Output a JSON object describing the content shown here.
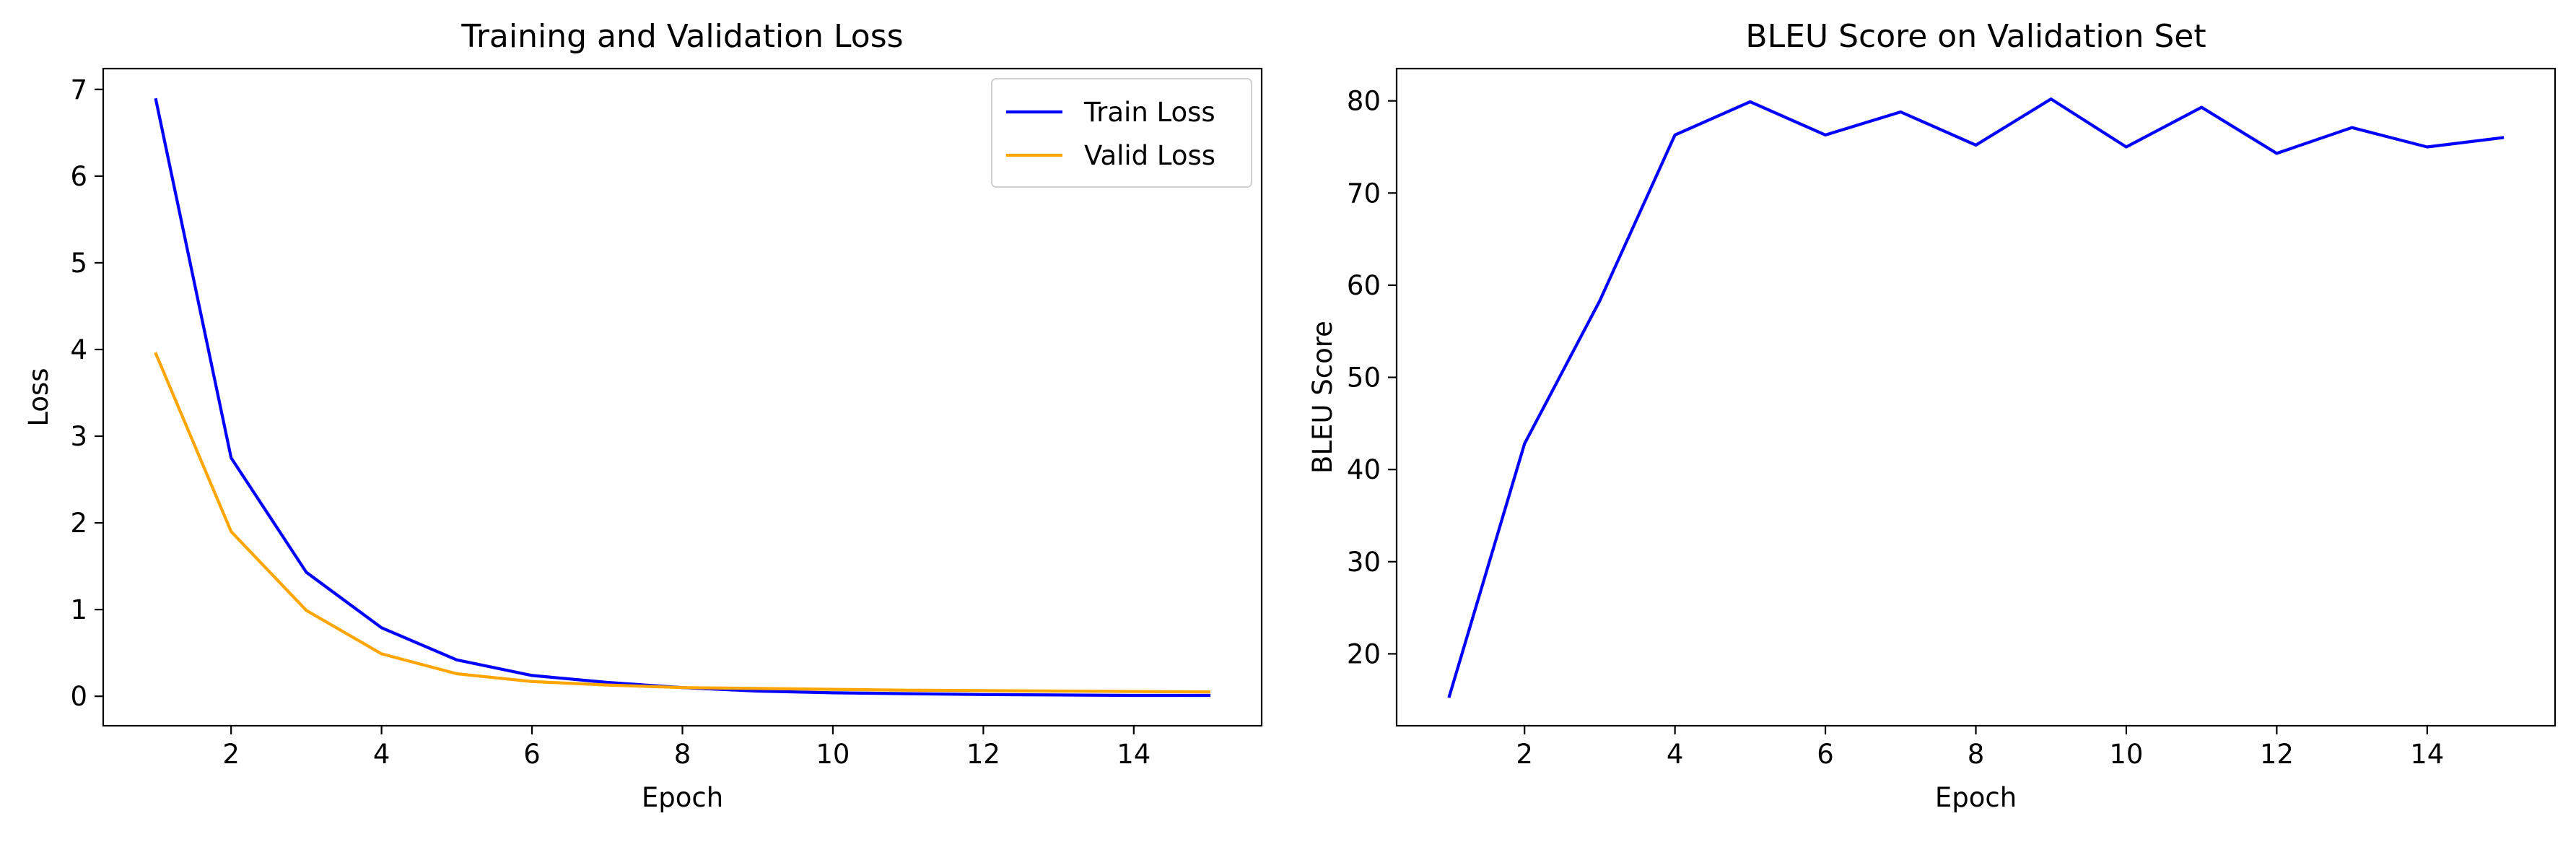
{
  "colors": {
    "train": "#0000ff",
    "valid": "#ffa500",
    "bleu": "#0000ff"
  },
  "chart_data": [
    {
      "type": "line",
      "title": "Training and Validation Loss",
      "xlabel": "Epoch",
      "ylabel": "Loss",
      "xlim": [
        0.3,
        15.7
      ],
      "ylim": [
        -0.34,
        7.24
      ],
      "xticks": [
        2,
        4,
        6,
        8,
        10,
        12,
        14
      ],
      "yticks": [
        0,
        1,
        2,
        3,
        4,
        5,
        6,
        7
      ],
      "x": [
        1,
        2,
        3,
        4,
        5,
        6,
        7,
        8,
        9,
        10,
        11,
        12,
        13,
        14,
        15
      ],
      "legend_position": "upper-right",
      "series": [
        {
          "name": "Train Loss",
          "color": "#0000ff",
          "values": [
            6.88,
            2.75,
            1.43,
            0.79,
            0.42,
            0.24,
            0.16,
            0.1,
            0.06,
            0.04,
            0.03,
            0.02,
            0.015,
            0.01,
            0.01
          ]
        },
        {
          "name": "Valid Loss",
          "color": "#ffa500",
          "values": [
            3.95,
            1.9,
            0.99,
            0.49,
            0.26,
            0.17,
            0.13,
            0.1,
            0.09,
            0.08,
            0.07,
            0.065,
            0.06,
            0.055,
            0.05
          ]
        }
      ]
    },
    {
      "type": "line",
      "title": "BLEU Score on Validation Set",
      "xlabel": "Epoch",
      "ylabel": "BLEU Score",
      "xlim": [
        0.3,
        15.7
      ],
      "ylim": [
        12.2,
        83.5
      ],
      "xticks": [
        2,
        4,
        6,
        8,
        10,
        12,
        14
      ],
      "yticks": [
        20,
        30,
        40,
        50,
        60,
        70,
        80
      ],
      "x": [
        1,
        2,
        3,
        4,
        5,
        6,
        7,
        8,
        9,
        10,
        11,
        12,
        13,
        14,
        15
      ],
      "series": [
        {
          "color": "#0000ff",
          "values": [
            15.4,
            42.8,
            58.3,
            76.3,
            79.9,
            76.3,
            78.8,
            75.2,
            80.2,
            75.0,
            79.3,
            74.3,
            77.1,
            75.0,
            76.0
          ]
        }
      ]
    }
  ]
}
